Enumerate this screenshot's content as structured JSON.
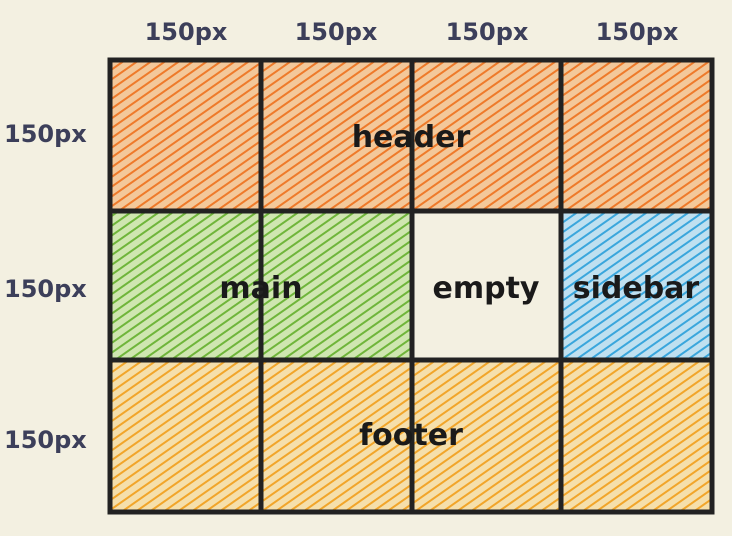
{
  "column_labels": [
    "150px",
    "150px",
    "150px",
    "150px"
  ],
  "row_labels": [
    "150px",
    "150px",
    "150px"
  ],
  "areas": {
    "header": {
      "label": "header",
      "color": "#f08a3a"
    },
    "main": {
      "label": "main",
      "color": "#7cc142"
    },
    "empty": {
      "label": "empty",
      "color": "#f3f0e1"
    },
    "sidebar": {
      "label": "sidebar",
      "color": "#4fb0e0"
    },
    "footer": {
      "label": "footer",
      "color": "#f3b03a"
    }
  },
  "colors": {
    "background": "#f3f0e1",
    "label_text": "#3c3f5a",
    "grid_line": "#222222"
  }
}
